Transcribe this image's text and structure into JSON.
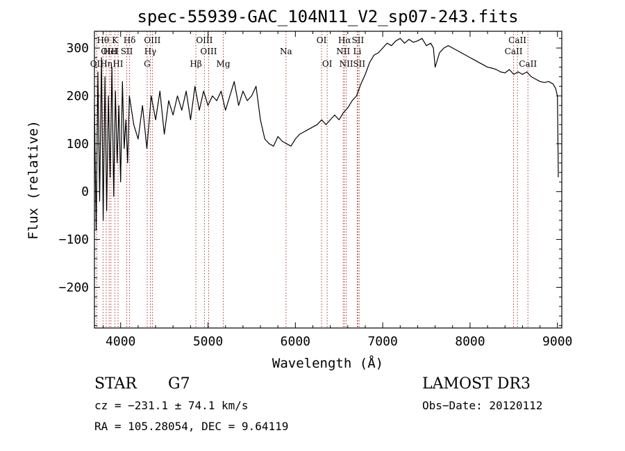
{
  "chart_data": {
    "type": "line",
    "title": "spec-55939-GAC_104N11_V2_sp07-243.fits",
    "xlabel": "Wavelength (Å)",
    "ylabel": "Flux (relative)",
    "xlim": [
      3700,
      9050
    ],
    "ylim": [
      -285,
      335
    ],
    "x_ticks": [
      4000,
      5000,
      6000,
      7000,
      8000,
      9000
    ],
    "y_ticks": [
      -200,
      -100,
      0,
      100,
      200,
      300
    ],
    "series": [
      {
        "name": "spectrum",
        "x": [
          3700,
          3720,
          3740,
          3760,
          3780,
          3800,
          3820,
          3840,
          3860,
          3880,
          3900,
          3920,
          3940,
          3960,
          3980,
          4000,
          4020,
          4040,
          4060,
          4080,
          4100,
          4150,
          4200,
          4250,
          4300,
          4350,
          4400,
          4450,
          4500,
          4550,
          4600,
          4650,
          4700,
          4750,
          4800,
          4850,
          4900,
          4950,
          5000,
          5050,
          5100,
          5150,
          5200,
          5250,
          5300,
          5350,
          5400,
          5450,
          5500,
          5550,
          5600,
          5650,
          5700,
          5750,
          5800,
          5850,
          5900,
          5950,
          6000,
          6050,
          6100,
          6150,
          6200,
          6250,
          6300,
          6350,
          6400,
          6450,
          6500,
          6550,
          6600,
          6650,
          6700,
          6750,
          6800,
          6850,
          6900,
          6950,
          7000,
          7050,
          7100,
          7150,
          7200,
          7250,
          7300,
          7350,
          7400,
          7450,
          7500,
          7550,
          7580,
          7600,
          7650,
          7700,
          7750,
          7800,
          7850,
          7900,
          7950,
          8000,
          8050,
          8100,
          8150,
          8200,
          8250,
          8300,
          8350,
          8400,
          8450,
          8500,
          8550,
          8600,
          8650,
          8700,
          8750,
          8800,
          8850,
          8900,
          8950,
          8980,
          9000,
          9010
        ],
        "y": [
          180,
          -80,
          250,
          -20,
          280,
          -60,
          240,
          -40,
          200,
          30,
          260,
          -10,
          210,
          60,
          180,
          20,
          230,
          90,
          150,
          60,
          200,
          140,
          110,
          180,
          90,
          200,
          150,
          210,
          120,
          190,
          160,
          200,
          170,
          210,
          150,
          220,
          170,
          210,
          180,
          200,
          190,
          210,
          170,
          200,
          230,
          180,
          210,
          190,
          200,
          220,
          150,
          110,
          100,
          95,
          115,
          105,
          100,
          95,
          110,
          120,
          125,
          130,
          135,
          140,
          150,
          140,
          150,
          160,
          150,
          165,
          175,
          190,
          200,
          225,
          245,
          270,
          285,
          290,
          300,
          310,
          305,
          315,
          320,
          310,
          318,
          312,
          315,
          320,
          305,
          310,
          300,
          260,
          290,
          300,
          305,
          300,
          295,
          290,
          285,
          280,
          275,
          270,
          265,
          260,
          258,
          255,
          250,
          248,
          255,
          245,
          250,
          245,
          250,
          240,
          235,
          230,
          228,
          230,
          225,
          215,
          200,
          30
        ]
      }
    ],
    "emission_lines": [
      {
        "name": "OII",
        "wavelength": 3727,
        "tier": 3
      },
      {
        "name": "Hθ",
        "wavelength": 3798,
        "tier": 1
      },
      {
        "name": "OIII",
        "wavelength": 3869,
        "tier": 2
      },
      {
        "name": "K",
        "wavelength": 3934,
        "tier": 1
      },
      {
        "name": "Hη",
        "wavelength": 3835,
        "tier": 3
      },
      {
        "name": "HeI",
        "wavelength": 3889,
        "tier": 2
      },
      {
        "name": "HI",
        "wavelength": 3970,
        "tier": 3
      },
      {
        "name": "SII",
        "wavelength": 4070,
        "tier": 2
      },
      {
        "name": "Hδ",
        "wavelength": 4102,
        "tier": 1
      },
      {
        "name": "OIII",
        "wavelength": 4363,
        "tier": 1
      },
      {
        "name": "Hγ",
        "wavelength": 4340,
        "tier": 2
      },
      {
        "name": "G",
        "wavelength": 4304,
        "tier": 3
      },
      {
        "name": "Hβ",
        "wavelength": 4861,
        "tier": 3
      },
      {
        "name": "OIII",
        "wavelength": 4959,
        "tier": 1
      },
      {
        "name": "OIII",
        "wavelength": 5007,
        "tier": 2
      },
      {
        "name": "Mg",
        "wavelength": 5175,
        "tier": 3
      },
      {
        "name": "Na",
        "wavelength": 5893,
        "tier": 2
      },
      {
        "name": "OI",
        "wavelength": 6300,
        "tier": 1
      },
      {
        "name": "OI",
        "wavelength": 6364,
        "tier": 3
      },
      {
        "name": "Hα",
        "wavelength": 6563,
        "tier": 1
      },
      {
        "name": "NII",
        "wavelength": 6548,
        "tier": 2
      },
      {
        "name": "NII",
        "wavelength": 6583,
        "tier": 3
      },
      {
        "name": "SII",
        "wavelength": 6716,
        "tier": 1
      },
      {
        "name": "Li",
        "wavelength": 6708,
        "tier": 2
      },
      {
        "name": "SII",
        "wavelength": 6731,
        "tier": 3
      },
      {
        "name": "CaII",
        "wavelength": 8498,
        "tier": 2
      },
      {
        "name": "CaII",
        "wavelength": 8542,
        "tier": 1
      },
      {
        "name": "CaII",
        "wavelength": 8662,
        "tier": 3
      }
    ],
    "colors": {
      "line": "#000000",
      "marker": "#b03030"
    }
  },
  "info": {
    "object_class": "STAR",
    "subclass": "G7",
    "survey": "LAMOST DR3",
    "redshift": "cz = −231.1 ± 74.1 km/s",
    "obs_date": "Obs−Date: 20120112",
    "coords": "RA = 105.28054, DEC =   9.64119"
  }
}
